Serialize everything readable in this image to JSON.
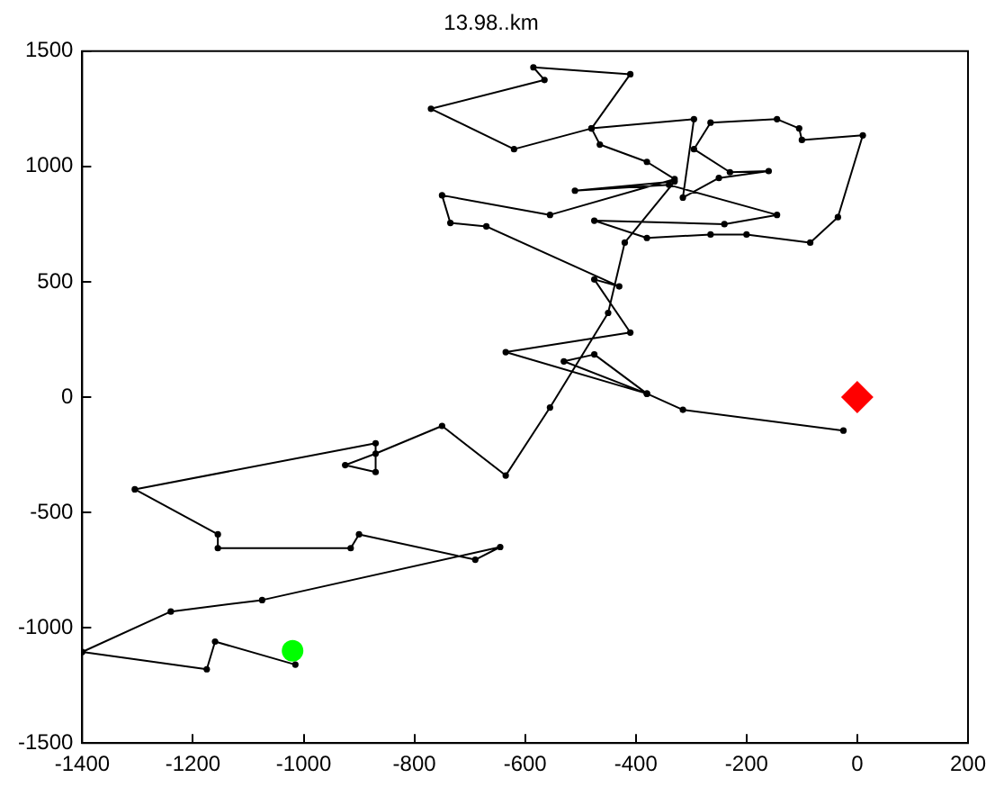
{
  "chart_data": {
    "type": "line",
    "title": "13.98..km",
    "xlim": [
      -1400,
      200
    ],
    "xticks": [
      -1400,
      -1200,
      -1000,
      -800,
      -600,
      -400,
      -200,
      0,
      200
    ],
    "ylim": [
      -1500,
      1500
    ],
    "yticks": [
      -1500,
      -1000,
      -500,
      0,
      500,
      1000,
      1500
    ],
    "grid": false,
    "legend": false,
    "line_style": "solid",
    "series": [
      {
        "marker": "circle",
        "color": "#000000",
        "x": [
          -1015,
          -1160,
          -1175,
          -1400,
          -1240,
          -1075,
          -645,
          -690,
          -900,
          -915,
          -1155,
          -1155,
          -1305,
          -870,
          -870,
          -925,
          -870,
          -750,
          -635,
          -555,
          -450,
          -420,
          -330,
          -510,
          -340,
          -145,
          -240,
          -475,
          -380,
          -265,
          -200,
          -85,
          -35,
          10,
          -100,
          -105,
          -145,
          -265,
          -295,
          -230,
          -160,
          -250,
          -315,
          -295,
          -480,
          -620,
          -770,
          -565,
          -585,
          -410,
          -480,
          -465,
          -380,
          -330,
          -555,
          -750,
          -735,
          -670,
          -430,
          -475,
          -410,
          -635,
          -380,
          -475,
          -530,
          -380,
          -315,
          -25
        ],
        "values": [
          -1160,
          -1060,
          -1180,
          -1105,
          -930,
          -880,
          -650,
          -705,
          -595,
          -655,
          -655,
          -595,
          -400,
          -200,
          -325,
          -295,
          -245,
          -125,
          -340,
          -45,
          365,
          670,
          935,
          895,
          920,
          790,
          750,
          765,
          690,
          705,
          705,
          670,
          780,
          1135,
          1115,
          1165,
          1205,
          1190,
          1075,
          975,
          980,
          950,
          865,
          1205,
          1165,
          1075,
          1250,
          1375,
          1430,
          1400,
          1165,
          1095,
          1020,
          945,
          790,
          875,
          755,
          740,
          480,
          510,
          280,
          195,
          15,
          185,
          155,
          15,
          -55,
          -145
        ]
      },
      {
        "type": "scatter",
        "marker": "circle",
        "color": "#00ff00",
        "x": [
          -1020
        ],
        "values": [
          -1100
        ]
      },
      {
        "type": "scatter",
        "marker": "diamond",
        "color": "#ff0000",
        "x": [
          0
        ],
        "values": [
          0
        ]
      }
    ]
  }
}
